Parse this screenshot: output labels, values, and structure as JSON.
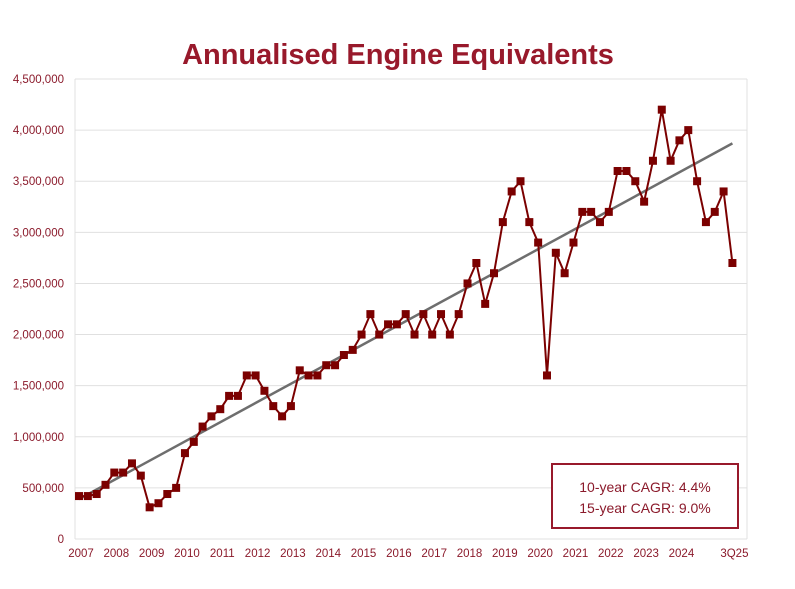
{
  "chart_data": {
    "type": "line",
    "title": "Annualised Engine Equivalents",
    "xlabel": "",
    "ylabel": "",
    "ylim": [
      0,
      4500000
    ],
    "yticks": [
      "0",
      "500,000",
      "1,000,000",
      "1,500,000",
      "2,000,000",
      "2,500,000",
      "3,000,000",
      "3,500,000",
      "4,000,000",
      "4,500,000"
    ],
    "ytick_values": [
      0,
      500000,
      1000000,
      1500000,
      2000000,
      2500000,
      3000000,
      3500000,
      4000000,
      4500000
    ],
    "xtick_labels": [
      "2007",
      "2008",
      "2009",
      "2010",
      "2011",
      "2012",
      "2013",
      "2014",
      "2015",
      "2016",
      "2017",
      "2018",
      "2019",
      "2020",
      "2021",
      "2022",
      "2023",
      "2024",
      "3Q25"
    ],
    "xtick_index": [
      0,
      4,
      8,
      12,
      16,
      20,
      24,
      28,
      32,
      36,
      40,
      44,
      48,
      52,
      56,
      60,
      64,
      68,
      74
    ],
    "grid": true,
    "series": [
      {
        "name": "Annualised Engine Equivalents",
        "color": "#7b0000",
        "marker": "square",
        "values": [
          420000,
          420000,
          440000,
          530000,
          650000,
          650000,
          740000,
          620000,
          310000,
          350000,
          440000,
          500000,
          840000,
          950000,
          1100000,
          1200000,
          1270000,
          1400000,
          1400000,
          1600000,
          1600000,
          1450000,
          1300000,
          1200000,
          1300000,
          1650000,
          1600000,
          1600000,
          1700000,
          1700000,
          1800000,
          1850000,
          2000000,
          2200000,
          2000000,
          2100000,
          2100000,
          2200000,
          2000000,
          2200000,
          2000000,
          2200000,
          2000000,
          2200000,
          2500000,
          2700000,
          2300000,
          2600000,
          3100000,
          3400000,
          3500000,
          3100000,
          2900000,
          1600000,
          2800000,
          2600000,
          2900000,
          3200000,
          3200000,
          3100000,
          3200000,
          3600000,
          3600000,
          3500000,
          3300000,
          3700000,
          4200000,
          3700000,
          3900000,
          4000000,
          3500000,
          3100000,
          3200000,
          3400000,
          2700000
        ]
      },
      {
        "name": "Trend",
        "type": "linear-trend",
        "color": "#6e6e6e",
        "start_value": 390000,
        "end_value": 3870000
      }
    ],
    "annotations": [
      {
        "text": "10-year CAGR: 4.4%"
      },
      {
        "text": "15-year CAGR: 9.0%"
      }
    ],
    "annotation_box_placement": "bottom-right",
    "colors": {
      "axis_text": "#8b1a2b",
      "title": "#98192b",
      "grid": "#e0e0e0",
      "box_border": "#98192b"
    }
  }
}
